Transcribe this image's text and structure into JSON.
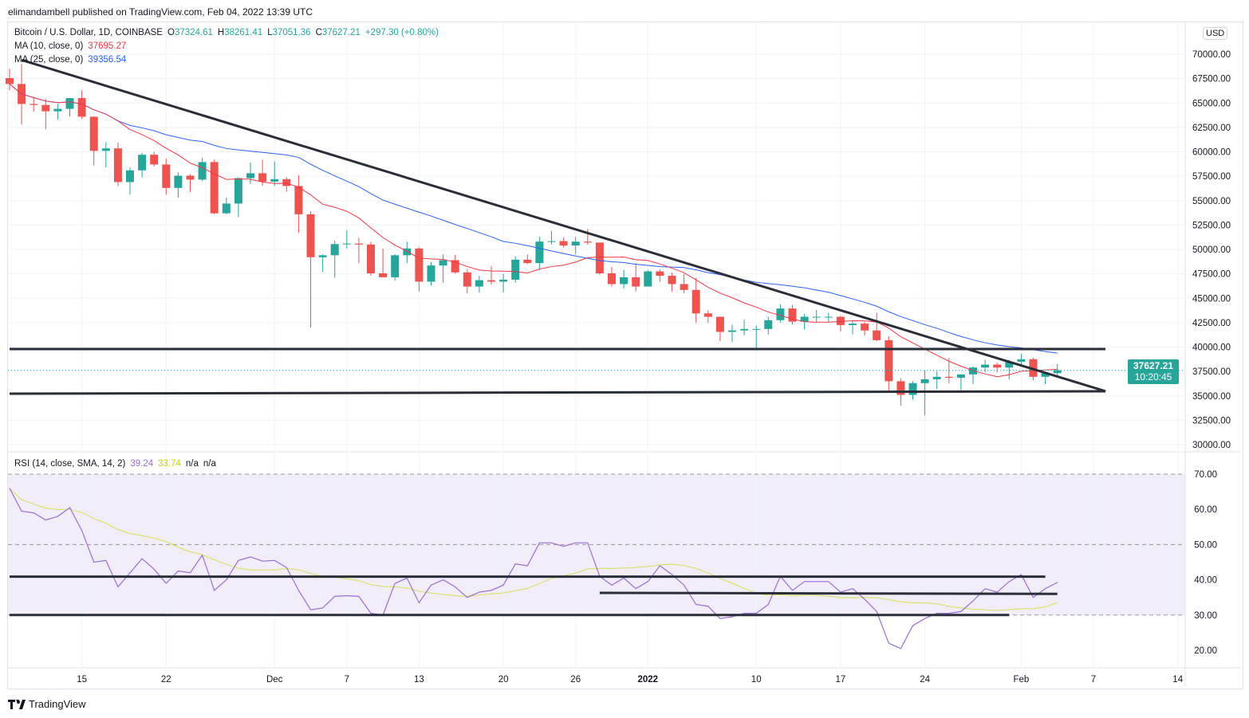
{
  "publish_line": "elimandambell published on TradingView.com, Feb 04, 2022 13:39 UTC",
  "branding": "TradingView",
  "colors": {
    "up": "#26a69a",
    "down": "#ef5350",
    "ma10": "#f23645",
    "ma25": "#2962ff",
    "rsi": "#9b6dd6",
    "rsi_sma": "#d4e157",
    "drawing": "#2a2e39",
    "rsi_band": "#f1edf9"
  },
  "legend": {
    "symbol": "Bitcoin / U.S. Dollar, 1D, COINBASE",
    "o_label": "O",
    "o": "37324.61",
    "h_label": "H",
    "h": "38261.41",
    "l_label": "L",
    "l": "37051.36",
    "c_label": "C",
    "c": "37627.21",
    "change": "+297.30 (+0.80%)",
    "ma10_label": "MA (10, close, 0)",
    "ma10_value": "37695.27",
    "ma25_label": "MA (25, close, 0)",
    "ma25_value": "39356.54",
    "rsi_label": "RSI (14, close, SMA, 14, 2)",
    "rsi_value": "39.24",
    "rsi_sma_value": "33.74",
    "na1": "n/a",
    "na2": "n/a"
  },
  "currency": "USD",
  "last_price": {
    "price": "37627.21",
    "countdown": "10:20:45"
  },
  "chart_data": {
    "type": "candlestick",
    "title": "Bitcoin / U.S. Dollar, 1D, COINBASE",
    "start_date": "2021-11-09",
    "ylim": [
      29000,
      72500
    ],
    "y_ticks": [
      "70000.00",
      "67500.00",
      "65000.00",
      "62500.00",
      "60000.00",
      "57500.00",
      "55000.00",
      "52500.00",
      "50000.00",
      "47500.00",
      "45000.00",
      "42500.00",
      "40000.00",
      "37500.00",
      "35000.00",
      "32500.00",
      "30000.00"
    ],
    "y_tick_values": [
      70000,
      67500,
      65000,
      62500,
      60000,
      57500,
      55000,
      52500,
      50000,
      47500,
      45000,
      42500,
      40000,
      37500,
      35000,
      32500,
      30000
    ],
    "x_ticks": [
      {
        "label": "15",
        "index": 6
      },
      {
        "label": "22",
        "index": 13
      },
      {
        "label": "Dec",
        "index": 22
      },
      {
        "label": "7",
        "index": 28
      },
      {
        "label": "13",
        "index": 34
      },
      {
        "label": "20",
        "index": 41
      },
      {
        "label": "26",
        "index": 47
      },
      {
        "label": "2022",
        "index": 53
      },
      {
        "label": "10",
        "index": 62
      },
      {
        "label": "17",
        "index": 69
      },
      {
        "label": "24",
        "index": 76
      },
      {
        "label": "Feb",
        "index": 84
      },
      {
        "label": "7",
        "index": 90
      },
      {
        "label": "14",
        "index": 97
      }
    ],
    "ohlc": [
      [
        67550,
        68530,
        66300,
        66950
      ],
      [
        66950,
        69000,
        62800,
        64900
      ],
      [
        64900,
        65600,
        64100,
        64800
      ],
      [
        64800,
        65450,
        62300,
        64150
      ],
      [
        64150,
        64900,
        63300,
        64400
      ],
      [
        64400,
        65500,
        63600,
        65500
      ],
      [
        65500,
        66300,
        63400,
        63600
      ],
      [
        63600,
        63600,
        58600,
        60100
      ],
      [
        60100,
        61000,
        58400,
        60350
      ],
      [
        60350,
        60950,
        56500,
        56900
      ],
      [
        56900,
        58400,
        55600,
        58100
      ],
      [
        58100,
        59900,
        57400,
        59700
      ],
      [
        59700,
        60000,
        58500,
        58700
      ],
      [
        58700,
        59300,
        55600,
        56300
      ],
      [
        56300,
        57900,
        55300,
        57550
      ],
      [
        57550,
        57700,
        55900,
        57150
      ],
      [
        57150,
        59400,
        57000,
        58950
      ],
      [
        58950,
        59200,
        53600,
        53700
      ],
      [
        53700,
        55300,
        53600,
        54700
      ],
      [
        54700,
        57400,
        53300,
        57300
      ],
      [
        57300,
        58900,
        56700,
        57800
      ],
      [
        57800,
        59200,
        56500,
        56950
      ],
      [
        56950,
        59000,
        56500,
        57200
      ],
      [
        57200,
        57400,
        55900,
        56500
      ],
      [
        56500,
        57600,
        51700,
        53600
      ],
      [
        53600,
        53900,
        42000,
        49200
      ],
      [
        49200,
        49500,
        47700,
        49400
      ],
      [
        49400,
        50900,
        47100,
        50550
      ],
      [
        50550,
        51950,
        50100,
        50600
      ],
      [
        50600,
        51200,
        48600,
        50500
      ],
      [
        50500,
        50800,
        47300,
        47550
      ],
      [
        47550,
        50100,
        47300,
        47150
      ],
      [
        47150,
        49500,
        46800,
        49400
      ],
      [
        49400,
        50800,
        48600,
        50100
      ],
      [
        50100,
        50200,
        45700,
        46700
      ],
      [
        46700,
        48700,
        46300,
        48350
      ],
      [
        48350,
        49500,
        46600,
        48900
      ],
      [
        48900,
        49450,
        47500,
        47650
      ],
      [
        47650,
        48000,
        45500,
        46200
      ],
      [
        46200,
        47300,
        45600,
        46850
      ],
      [
        46850,
        48300,
        46400,
        46700
      ],
      [
        46700,
        47500,
        45600,
        46900
      ],
      [
        46900,
        49300,
        46600,
        48950
      ],
      [
        48950,
        49500,
        48500,
        48600
      ],
      [
        48600,
        51300,
        47900,
        50800
      ],
      [
        50800,
        51900,
        50500,
        50850
      ],
      [
        50850,
        51200,
        50200,
        50400
      ],
      [
        50400,
        51300,
        49500,
        50800
      ],
      [
        50800,
        52100,
        50500,
        50700
      ],
      [
        50700,
        50700,
        47400,
        47550
      ],
      [
        47550,
        48200,
        46200,
        46450
      ],
      [
        46450,
        47900,
        46000,
        47150
      ],
      [
        47150,
        48600,
        45700,
        46200
      ],
      [
        46200,
        47900,
        46200,
        47750
      ],
      [
        47750,
        47950,
        46700,
        47300
      ],
      [
        47300,
        47600,
        45700,
        46450
      ],
      [
        46450,
        47500,
        45500,
        45850
      ],
      [
        45850,
        47100,
        42500,
        43450
      ],
      [
        43450,
        43750,
        42450,
        43100
      ],
      [
        43100,
        43100,
        40600,
        41550
      ],
      [
        41550,
        42300,
        40500,
        41700
      ],
      [
        41700,
        42800,
        41200,
        41850
      ],
      [
        41850,
        42200,
        39650,
        41850
      ],
      [
        41850,
        43100,
        41300,
        42750
      ],
      [
        42750,
        44400,
        42500,
        43950
      ],
      [
        43950,
        44300,
        42300,
        42600
      ],
      [
        42600,
        43400,
        41800,
        43100
      ],
      [
        43100,
        43800,
        42600,
        43100
      ],
      [
        43100,
        43500,
        42600,
        43100
      ],
      [
        43100,
        43200,
        41600,
        42250
      ],
      [
        42250,
        42700,
        41300,
        42400
      ],
      [
        42400,
        42600,
        41200,
        41700
      ],
      [
        41700,
        43500,
        40600,
        40700
      ],
      [
        40700,
        41100,
        35500,
        36500
      ],
      [
        36500,
        36800,
        34000,
        35100
      ],
      [
        35100,
        36500,
        34600,
        36300
      ],
      [
        36300,
        37600,
        33000,
        36700
      ],
      [
        36700,
        37500,
        35700,
        36950
      ],
      [
        36950,
        38900,
        36300,
        36850
      ],
      [
        36850,
        37200,
        35600,
        37200
      ],
      [
        37200,
        38000,
        36200,
        37900
      ],
      [
        37900,
        38700,
        37400,
        38200
      ],
      [
        38200,
        38400,
        37400,
        37900
      ],
      [
        37900,
        38700,
        36700,
        38500
      ],
      [
        38500,
        39300,
        38000,
        38750
      ],
      [
        38750,
        38900,
        36600,
        36950
      ],
      [
        36950,
        37400,
        36200,
        37320
      ],
      [
        37324.61,
        38261.41,
        37051.36,
        37627.21
      ]
    ],
    "ma_periods": [
      10,
      25
    ],
    "drawings": [
      {
        "name": "descending-trendline",
        "from": [
          1,
          69400
        ],
        "to": [
          91,
          35470
        ]
      },
      {
        "name": "resistance-line",
        "from": [
          0,
          39800
        ],
        "to": [
          91,
          39800
        ]
      },
      {
        "name": "support-line",
        "from": [
          0,
          35220
        ],
        "to": [
          91,
          35470
        ]
      }
    ],
    "rsi": {
      "ylim": [
        17,
        75
      ],
      "y_ticks": [
        "70.00",
        "60.00",
        "50.00",
        "40.00",
        "30.00",
        "20.00"
      ],
      "y_tick_values": [
        70,
        60,
        50,
        40,
        30,
        20
      ],
      "band": [
        30,
        70
      ],
      "sma_period": 14,
      "values": [
        66,
        59.5,
        59,
        57,
        58,
        60.5,
        54,
        45,
        45.5,
        38,
        42,
        46,
        43,
        39,
        42.5,
        42,
        47,
        37,
        40,
        45.5,
        46.5,
        45.3,
        45.5,
        43.5,
        37,
        31.5,
        32,
        35.3,
        35.5,
        35.3,
        30.5,
        30,
        39,
        40.5,
        33.5,
        38.5,
        40,
        38,
        35,
        36.5,
        37,
        38.5,
        44.5,
        44,
        50.5,
        50.5,
        49.5,
        50.5,
        50.5,
        41,
        38.5,
        40.5,
        37.5,
        39.5,
        44,
        41.5,
        38.5,
        33,
        32.5,
        29,
        29.5,
        30.5,
        30.5,
        33,
        41,
        37,
        39.5,
        39.5,
        39.5,
        36.5,
        37.5,
        34.5,
        31,
        22,
        20.5,
        27,
        29,
        30.5,
        30.5,
        31,
        34,
        37.5,
        36.5,
        39.5,
        41.5,
        35,
        37.5,
        39.24
      ],
      "drawings": [
        {
          "name": "rsi-upper-line",
          "from": [
            0,
            40.9
          ],
          "to": [
            86,
            40.9
          ]
        },
        {
          "name": "rsi-mid-line",
          "from": [
            49,
            36.3
          ],
          "to": [
            87,
            36.0
          ]
        },
        {
          "name": "rsi-lower-line",
          "from": [
            0,
            30.0
          ],
          "to": [
            83,
            30.0
          ]
        }
      ]
    }
  }
}
